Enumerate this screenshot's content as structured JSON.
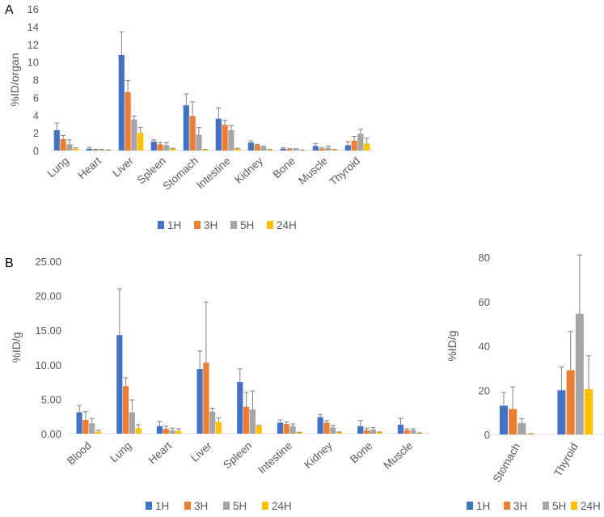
{
  "colors": {
    "1H": "#4472c4",
    "3H": "#ed7d31",
    "5H": "#a5a5a5",
    "24H": "#ffc000",
    "axis": "#d9d9d9",
    "err": "#7f7f7f"
  },
  "legend": [
    "1H",
    "3H",
    "5H",
    "24H"
  ],
  "chart_data": [
    {
      "id": "A",
      "panel_label": "A",
      "type": "bar",
      "ylabel": "%ID/organ",
      "ylim": [
        0,
        16
      ],
      "yticks": [
        "0",
        "2",
        "4",
        "6",
        "8",
        "10",
        "12",
        "14",
        "16"
      ],
      "categories": [
        "Lung",
        "Heart",
        "Liver",
        "Spleen",
        "Stomach",
        "Intestine",
        "Kidney",
        "Bone",
        "Muscle",
        "Thyroid"
      ],
      "series": [
        {
          "name": "1H",
          "values": [
            2.3,
            0.2,
            10.8,
            1.0,
            5.1,
            3.6,
            0.9,
            0.2,
            0.5,
            0.6
          ],
          "errors": [
            0.8,
            0.15,
            2.6,
            0.2,
            1.3,
            1.2,
            0.2,
            0.1,
            0.3,
            0.4
          ]
        },
        {
          "name": "3H",
          "values": [
            1.3,
            0.1,
            6.6,
            0.7,
            3.9,
            2.9,
            0.6,
            0.15,
            0.2,
            1.1
          ],
          "errors": [
            0.4,
            0.05,
            1.3,
            0.2,
            1.6,
            0.5,
            0.1,
            0.05,
            0.1,
            0.5
          ]
        },
        {
          "name": "5H",
          "values": [
            0.7,
            0.1,
            3.5,
            0.6,
            1.8,
            2.3,
            0.4,
            0.15,
            0.3,
            1.9
          ],
          "errors": [
            0.5,
            0.05,
            0.4,
            0.3,
            0.8,
            0.5,
            0.1,
            0.05,
            0.2,
            0.5
          ]
        },
        {
          "name": "24H",
          "values": [
            0.2,
            0.05,
            2.0,
            0.2,
            0.1,
            0.2,
            0.1,
            0.05,
            0.1,
            0.8
          ],
          "errors": [
            0.1,
            0.03,
            0.6,
            0.05,
            0.03,
            0.05,
            0.03,
            0.02,
            0.03,
            0.6
          ]
        }
      ]
    },
    {
      "id": "B",
      "panel_label": "B",
      "type": "bar",
      "ylabel": "%ID/g",
      "ylim": [
        0,
        25
      ],
      "yticks": [
        "0.00",
        "5.00",
        "10.00",
        "15.00",
        "20.00",
        "25.00"
      ],
      "categories": [
        "Blood",
        "Lung",
        "Heart",
        "Liver",
        "Spleen",
        "Intestine",
        "Kidney",
        "Bone",
        "Muscle"
      ],
      "series": [
        {
          "name": "1H",
          "values": [
            3.1,
            14.3,
            1.1,
            9.4,
            7.5,
            1.6,
            2.4,
            1.1,
            1.3
          ],
          "errors": [
            1.0,
            6.7,
            0.7,
            2.6,
            1.9,
            0.4,
            0.4,
            0.8,
            0.9
          ]
        },
        {
          "name": "3H",
          "values": [
            2.0,
            6.9,
            0.7,
            10.3,
            3.9,
            1.4,
            1.6,
            0.5,
            0.5
          ],
          "errors": [
            1.2,
            1.2,
            0.4,
            8.8,
            2.1,
            0.3,
            0.3,
            0.3,
            0.2
          ]
        },
        {
          "name": "5H",
          "values": [
            1.5,
            3.1,
            0.5,
            3.2,
            3.5,
            1.1,
            0.9,
            0.6,
            0.5
          ],
          "errors": [
            0.7,
            1.8,
            0.3,
            0.5,
            2.7,
            0.3,
            0.3,
            0.3,
            0.2
          ]
        },
        {
          "name": "24H",
          "values": [
            0.3,
            0.8,
            0.4,
            1.7,
            1.1,
            0.15,
            0.2,
            0.2,
            0.1
          ],
          "errors": [
            0.2,
            0.5,
            0.3,
            0.6,
            0.1,
            0.05,
            0.05,
            0.05,
            0.03
          ]
        }
      ]
    },
    {
      "id": "C",
      "panel_label": "",
      "type": "bar",
      "ylabel": "%ID/g",
      "ylim": [
        0,
        80
      ],
      "yticks": [
        "0",
        "20",
        "40",
        "60",
        "80"
      ],
      "categories": [
        "Stomach",
        "Thyroid"
      ],
      "series": [
        {
          "name": "1H",
          "values": [
            13,
            20
          ],
          "errors": [
            6,
            10.5
          ]
        },
        {
          "name": "3H",
          "values": [
            11.5,
            29
          ],
          "errors": [
            10,
            17.5
          ]
        },
        {
          "name": "5H",
          "values": [
            5.2,
            54.5
          ],
          "errors": [
            2,
            26.5
          ]
        },
        {
          "name": "24H",
          "values": [
            0.3,
            20.5
          ],
          "errors": [
            0.1,
            15
          ]
        }
      ]
    }
  ]
}
